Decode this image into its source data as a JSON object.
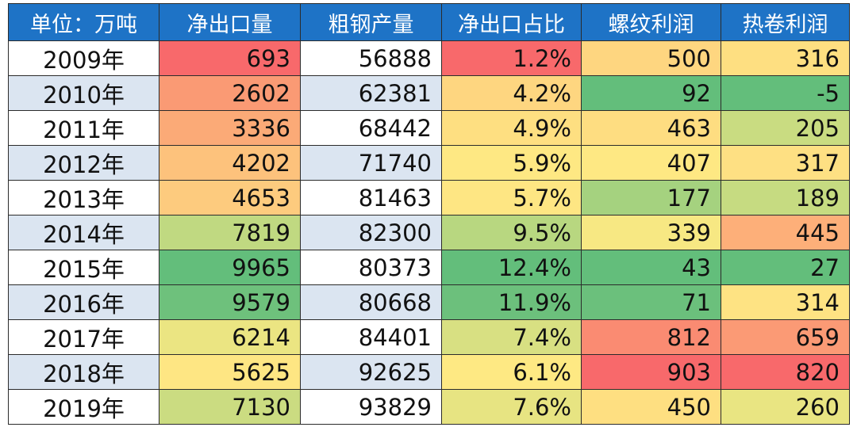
{
  "table": {
    "headers": [
      "单位：万吨",
      "净出口量",
      "粗钢产量",
      "净出口占比",
      "螺纹利润",
      "热卷利润"
    ],
    "rows": [
      {
        "year": "2009年",
        "net_export": "693",
        "steel_output": "56888",
        "export_share": "1.2%",
        "rebar_profit": "500",
        "hrc_profit": "316"
      },
      {
        "year": "2010年",
        "net_export": "2602",
        "steel_output": "62381",
        "export_share": "4.2%",
        "rebar_profit": "92",
        "hrc_profit": "-5"
      },
      {
        "year": "2011年",
        "net_export": "3336",
        "steel_output": "68442",
        "export_share": "4.9%",
        "rebar_profit": "463",
        "hrc_profit": "205"
      },
      {
        "year": "2012年",
        "net_export": "4202",
        "steel_output": "71740",
        "export_share": "5.9%",
        "rebar_profit": "407",
        "hrc_profit": "317"
      },
      {
        "year": "2013年",
        "net_export": "4653",
        "steel_output": "81463",
        "export_share": "5.7%",
        "rebar_profit": "177",
        "hrc_profit": "189"
      },
      {
        "year": "2014年",
        "net_export": "7819",
        "steel_output": "82300",
        "export_share": "9.5%",
        "rebar_profit": "339",
        "hrc_profit": "445"
      },
      {
        "year": "2015年",
        "net_export": "9965",
        "steel_output": "80373",
        "export_share": "12.4%",
        "rebar_profit": "43",
        "hrc_profit": "27"
      },
      {
        "year": "2016年",
        "net_export": "9579",
        "steel_output": "80668",
        "export_share": "11.9%",
        "rebar_profit": "71",
        "hrc_profit": "314"
      },
      {
        "year": "2017年",
        "net_export": "6214",
        "steel_output": "84401",
        "export_share": "7.4%",
        "rebar_profit": "812",
        "hrc_profit": "659"
      },
      {
        "year": "2018年",
        "net_export": "5625",
        "steel_output": "92625",
        "export_share": "6.1%",
        "rebar_profit": "903",
        "hrc_profit": "820"
      },
      {
        "year": "2019年",
        "net_export": "7130",
        "steel_output": "93829",
        "export_share": "7.6%",
        "rebar_profit": "450",
        "hrc_profit": "260"
      }
    ],
    "cell_colors": {
      "net_export": [
        "#f8696b",
        "#fa9a74",
        "#fbaa77",
        "#fdc27c",
        "#fdcb7e",
        "#c0d981",
        "#63be7b",
        "#6ec17c",
        "#ebe582",
        "#fee683",
        "#cbdc81"
      ],
      "export_share": [
        "#f8696b",
        "#fed680",
        "#fedf81",
        "#fee883",
        "#fee683",
        "#b8d780",
        "#63be7b",
        "#6cc07c",
        "#d8e082",
        "#fee983",
        "#e7e482"
      ],
      "rebar_profit": [
        "#fed680",
        "#63be7b",
        "#fedd81",
        "#fee883",
        "#a5d27f",
        "#f7e883",
        "#63be7b",
        "#6bc07c",
        "#fa8b72",
        "#f8696b",
        "#fedf81"
      ],
      "hrc_profit": [
        "#fedf81",
        "#63be7b",
        "#c9dc81",
        "#fee083",
        "#c6db81",
        "#fdaf79",
        "#63be7b",
        "#fee383",
        "#fb9a75",
        "#f8696b",
        "#e9e582"
      ]
    }
  }
}
